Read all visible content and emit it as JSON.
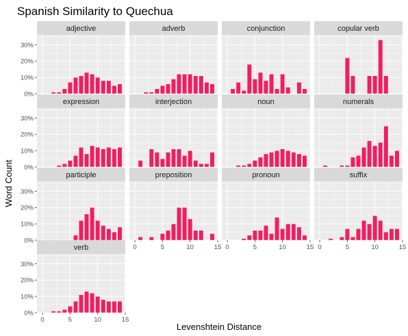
{
  "chart_data": {
    "type": "bar",
    "title": "Spanish Similarity to Quechua",
    "xlabel": "Levenshtein Distance",
    "ylabel": "Word Count",
    "xlim": [
      -1,
      15
    ],
    "ylim": [
      0,
      0.36
    ],
    "x_ticks": [
      0,
      5,
      10,
      15
    ],
    "y_ticks": [
      0,
      0.1,
      0.2,
      0.3
    ],
    "y_tick_labels": [
      "0%",
      "10%",
      "20%",
      "30%"
    ],
    "x_tick_labels": [
      "0",
      "5",
      "10",
      "15"
    ],
    "x": [
      0,
      1,
      2,
      3,
      4,
      5,
      6,
      7,
      8,
      9,
      10,
      11,
      12,
      13,
      14
    ],
    "bar_color": "#ef1f60",
    "panel_bg": "#ebebeb",
    "strip_bg": "#d9d9d9",
    "grid_color": "#ffffff",
    "facets": [
      {
        "name": "adjective",
        "values": [
          0,
          0,
          0.01,
          0.01,
          0.03,
          0.07,
          0.1,
          0.11,
          0.13,
          0.12,
          0.1,
          0.08,
          0.08,
          0.05,
          0.06
        ]
      },
      {
        "name": "adverb",
        "values": [
          0,
          0,
          0.01,
          0.01,
          0.03,
          0.05,
          0.06,
          0.09,
          0.12,
          0.12,
          0.12,
          0.11,
          0.11,
          0.07,
          0.06
        ]
      },
      {
        "name": "conjunction",
        "values": [
          0,
          0.03,
          0.07,
          0.02,
          0.18,
          0.09,
          0.13,
          0.08,
          0.12,
          0.03,
          0.12,
          0.04,
          0,
          0.07,
          0.03
        ]
      },
      {
        "name": "copular verb",
        "values": [
          0,
          0,
          0,
          0,
          0,
          0.22,
          0.11,
          0,
          0,
          0.11,
          0.11,
          0.33,
          0.11,
          0,
          0
        ]
      },
      {
        "name": "expression",
        "values": [
          0,
          0,
          0,
          0.01,
          0.02,
          0.04,
          0.07,
          0.12,
          0.08,
          0.13,
          0.12,
          0.11,
          0.12,
          0.11,
          0.12
        ]
      },
      {
        "name": "interjection",
        "values": [
          0,
          0.04,
          0,
          0.11,
          0.09,
          0.05,
          0.09,
          0.11,
          0.11,
          0.07,
          0.1,
          0.04,
          0.02,
          0.02,
          0.09
        ]
      },
      {
        "name": "noun",
        "values": [
          0,
          0,
          0.01,
          0.01,
          0.02,
          0.04,
          0.06,
          0.08,
          0.09,
          0.1,
          0.11,
          0.1,
          0.09,
          0.08,
          0.07
        ]
      },
      {
        "name": "numerals",
        "values": [
          0,
          0.01,
          0,
          0,
          0.01,
          0.01,
          0.06,
          0.07,
          0.12,
          0.16,
          0.13,
          0.15,
          0.25,
          0.07,
          0.1
        ]
      },
      {
        "name": "participle",
        "values": [
          0,
          0,
          0,
          0,
          0,
          0,
          0.03,
          0.12,
          0.16,
          0.2,
          0.12,
          0.09,
          0.07,
          0.05,
          0.08
        ]
      },
      {
        "name": "preposition",
        "values": [
          0,
          0.02,
          0,
          0.02,
          0,
          0.04,
          0.06,
          0.1,
          0.2,
          0.2,
          0.13,
          0.06,
          0.06,
          0,
          0.04
        ]
      },
      {
        "name": "pronoun",
        "values": [
          0,
          0,
          0,
          0.01,
          0.03,
          0.06,
          0.06,
          0.09,
          0.04,
          0.14,
          0.07,
          0.1,
          0.1,
          0.08,
          0.03
        ]
      },
      {
        "name": "suffix",
        "values": [
          0,
          0,
          0.01,
          0,
          0.02,
          0.07,
          0.02,
          0.07,
          0.12,
          0.1,
          0.15,
          0.12,
          0.05,
          0.07,
          0.07
        ]
      },
      {
        "name": "verb",
        "values": [
          0,
          0,
          0.01,
          0.01,
          0.02,
          0.04,
          0.07,
          0.11,
          0.13,
          0.12,
          0.1,
          0.08,
          0.07,
          0.07,
          0.07
        ]
      }
    ]
  }
}
